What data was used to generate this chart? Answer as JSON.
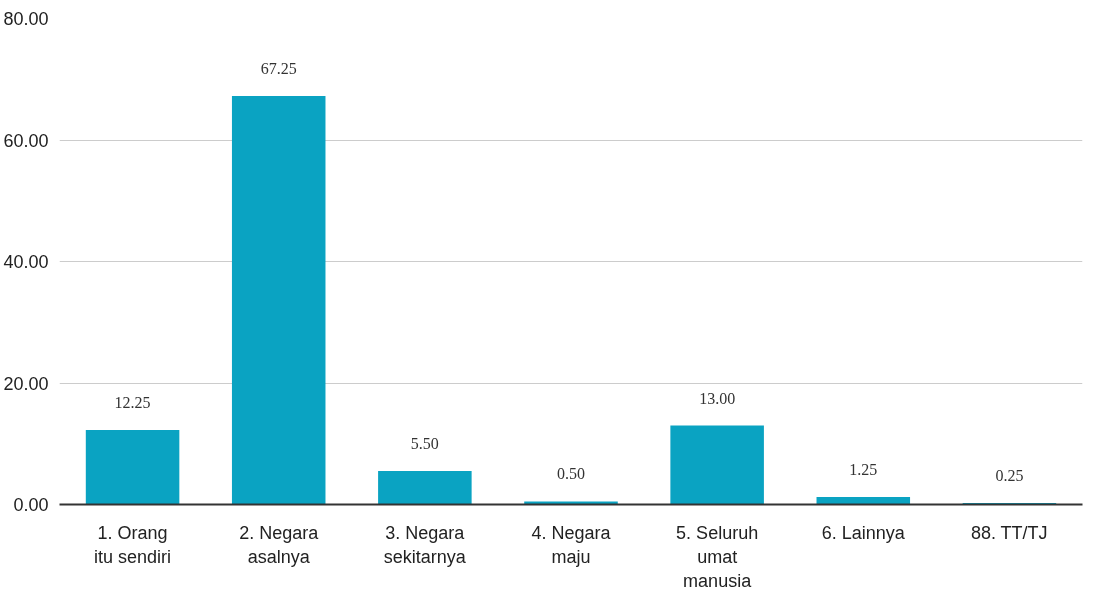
{
  "chart_data": {
    "type": "bar",
    "categories": [
      "1. Orang\nitu sendiri",
      "2. Negara\nasalnya",
      "3. Negara\nsekitarnya",
      "4. Negara\nmaju",
      "5. Seluruh\numat\nmanusia",
      "6. Lainnya",
      "88. TT/TJ"
    ],
    "values": [
      12.25,
      67.25,
      5.5,
      0.5,
      13.0,
      1.25,
      0.25
    ],
    "value_labels": [
      "12.25",
      "67.25",
      "5.50",
      "0.50",
      "13.00",
      "1.25",
      "0.25"
    ],
    "color": "#0aa3c2",
    "ylim": [
      0,
      80
    ],
    "yticks": [
      {
        "value": 0,
        "label": "0.00"
      },
      {
        "value": 20,
        "label": "20.00"
      },
      {
        "value": 40,
        "label": "40.00"
      },
      {
        "value": 60,
        "label": "60.00"
      },
      {
        "value": 80,
        "label": "80.00"
      }
    ],
    "grid": "y"
  }
}
